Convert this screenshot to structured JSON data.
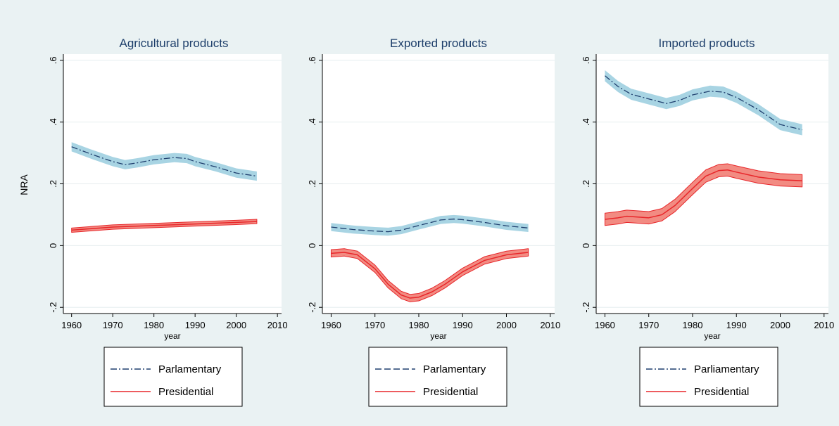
{
  "figure": {
    "ylabel": "NRA",
    "background": "#eaf2f3"
  },
  "colors": {
    "parliamentary_band": "#a8d4e3",
    "parliamentary_line": "#1f3f6e",
    "presidential_band": "#f28b82",
    "presidential_line": "#e8262a"
  },
  "chart_data": [
    {
      "type": "line",
      "title": "Agricultural products",
      "xlabel": "year",
      "ylabel": "NRA",
      "xlim": [
        1958,
        2011
      ],
      "ylim": [
        -0.22,
        0.62
      ],
      "xticks": [
        1960,
        1970,
        1980,
        1990,
        2000,
        2010
      ],
      "yticks": [
        -0.2,
        0,
        0.2,
        0.4,
        0.6
      ],
      "yticklabels": [
        "-.2",
        "0",
        ".2",
        ".4",
        ".6"
      ],
      "legend": [
        "Parlamentary",
        "Presidential"
      ],
      "series": [
        {
          "name": "Parlamentary",
          "style": "dashdot",
          "ci_halfwidth": 0.015,
          "x": [
            1960,
            1965,
            1970,
            1973,
            1976,
            1980,
            1985,
            1988,
            1990,
            1995,
            2000,
            2005
          ],
          "y": [
            0.32,
            0.295,
            0.272,
            0.262,
            0.268,
            0.278,
            0.285,
            0.282,
            0.272,
            0.255,
            0.235,
            0.225
          ]
        },
        {
          "name": "Presidential",
          "style": "solid",
          "ci_halfwidth": 0.007,
          "x": [
            1960,
            1970,
            1980,
            1990,
            2000,
            2005
          ],
          "y": [
            0.05,
            0.06,
            0.065,
            0.07,
            0.075,
            0.078
          ]
        }
      ]
    },
    {
      "type": "line",
      "title": "Exported products",
      "xlabel": "year",
      "ylabel": "",
      "xlim": [
        1958,
        2011
      ],
      "ylim": [
        -0.22,
        0.62
      ],
      "xticks": [
        1960,
        1970,
        1980,
        1990,
        2000,
        2010
      ],
      "yticks": [
        -0.2,
        0,
        0.2,
        0.4,
        0.6
      ],
      "yticklabels": [
        "-.2",
        "0",
        ".2",
        ".4",
        ".6"
      ],
      "legend": [
        "Parlamentary",
        "Presidential"
      ],
      "series": [
        {
          "name": "Parlamentary",
          "style": "dashed",
          "ci_halfwidth": 0.013,
          "x": [
            1960,
            1965,
            1970,
            1973,
            1976,
            1980,
            1985,
            1988,
            1990,
            1995,
            2000,
            2005
          ],
          "y": [
            0.06,
            0.052,
            0.047,
            0.045,
            0.05,
            0.065,
            0.083,
            0.086,
            0.084,
            0.075,
            0.064,
            0.057
          ]
        },
        {
          "name": "Presidential",
          "style": "solid",
          "ci_halfwidth": 0.012,
          "x": [
            1960,
            1963,
            1966,
            1970,
            1973,
            1976,
            1978,
            1980,
            1983,
            1986,
            1990,
            1995,
            2000,
            2005
          ],
          "y": [
            -0.025,
            -0.022,
            -0.03,
            -0.075,
            -0.125,
            -0.16,
            -0.17,
            -0.167,
            -0.15,
            -0.125,
            -0.085,
            -0.048,
            -0.03,
            -0.022
          ]
        }
      ]
    },
    {
      "type": "line",
      "title": "Imported products",
      "xlabel": "year",
      "ylabel": "",
      "xlim": [
        1958,
        2011
      ],
      "ylim": [
        -0.22,
        0.62
      ],
      "xticks": [
        1960,
        1970,
        1980,
        1990,
        2000,
        2010
      ],
      "yticks": [
        -0.2,
        0,
        0.2,
        0.4,
        0.6
      ],
      "yticklabels": [
        "-.2",
        "0",
        ".2",
        ".4",
        ".6"
      ],
      "legend": [
        "Parliamentary",
        "Presidential"
      ],
      "series": [
        {
          "name": "Parliamentary",
          "style": "dashdot",
          "ci_halfwidth": 0.018,
          "x": [
            1960,
            1963,
            1966,
            1970,
            1974,
            1977,
            1980,
            1984,
            1987,
            1990,
            1995,
            2000,
            2005
          ],
          "y": [
            0.55,
            0.515,
            0.49,
            0.475,
            0.46,
            0.47,
            0.488,
            0.5,
            0.497,
            0.48,
            0.44,
            0.392,
            0.375
          ]
        },
        {
          "name": "Presidential",
          "style": "solid",
          "ci_halfwidth": 0.02,
          "x": [
            1960,
            1963,
            1965,
            1970,
            1973,
            1976,
            1980,
            1983,
            1986,
            1988,
            1990,
            1995,
            2000,
            2005
          ],
          "y": [
            0.085,
            0.09,
            0.095,
            0.09,
            0.1,
            0.13,
            0.185,
            0.225,
            0.243,
            0.245,
            0.238,
            0.222,
            0.213,
            0.21
          ]
        }
      ]
    }
  ]
}
